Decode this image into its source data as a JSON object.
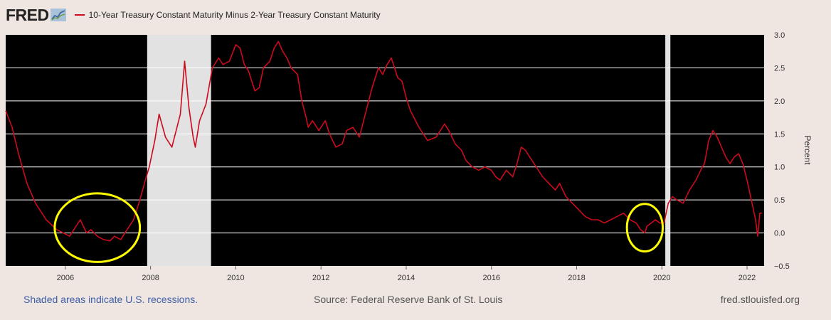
{
  "header": {
    "logo_text": "FRED",
    "legend_label": "10-Year Treasury Constant Maturity Minus 2-Year Treasury Constant Maturity"
  },
  "footer": {
    "recession_note": "Shaded areas indicate U.S. recessions.",
    "source": "Source: Federal Reserve Bank of St. Louis",
    "site": "fred.stlouisfed.org"
  },
  "colors": {
    "background": "#efe6e2",
    "plot_background": "#000000",
    "line": "#cc0a1e",
    "recession": "#e2e2e2",
    "highlight": "#ffff00"
  },
  "chart_data": {
    "type": "line",
    "title": "",
    "xlabel": "",
    "ylabel": "Percent",
    "xlim": [
      2004.6,
      2022.4
    ],
    "ylim": [
      -0.5,
      3.0
    ],
    "x_ticks": [
      "2006",
      "2008",
      "2010",
      "2012",
      "2014",
      "2016",
      "2018",
      "2020",
      "2022"
    ],
    "y_ticks": [
      "3.0",
      "2.5",
      "2.0",
      "1.5",
      "1.0",
      "0.5",
      "0.0",
      "−0.5"
    ],
    "grid": true,
    "recessions": [
      [
        2007.92,
        2009.42
      ],
      [
        2020.08,
        2020.2
      ]
    ],
    "highlights": [
      {
        "center": [
          2006.75,
          0.08
        ],
        "rx": 1.0,
        "ry": 0.52
      },
      {
        "center": [
          2019.6,
          0.08
        ],
        "rx": 0.42,
        "ry": 0.36
      }
    ],
    "series": [
      {
        "name": "10-Year Treasury Constant Maturity Minus 2-Year Treasury Constant Maturity",
        "x": [
          2004.6,
          2004.75,
          2004.9,
          2005.1,
          2005.3,
          2005.55,
          2005.8,
          2005.95,
          2006.1,
          2006.25,
          2006.35,
          2006.5,
          2006.6,
          2006.75,
          2006.9,
          2007.05,
          2007.15,
          2007.3,
          2007.45,
          2007.6,
          2007.75,
          2007.9,
          2007.97,
          2008.1,
          2008.2,
          2008.35,
          2008.5,
          2008.6,
          2008.7,
          2008.8,
          2008.9,
          2009.0,
          2009.05,
          2009.15,
          2009.3,
          2009.45,
          2009.6,
          2009.7,
          2009.85,
          2010.0,
          2010.1,
          2010.2,
          2010.3,
          2010.45,
          2010.55,
          2010.65,
          2010.8,
          2010.9,
          2011.0,
          2011.1,
          2011.2,
          2011.3,
          2011.45,
          2011.55,
          2011.65,
          2011.7,
          2011.8,
          2011.95,
          2012.1,
          2012.2,
          2012.35,
          2012.5,
          2012.6,
          2012.75,
          2012.9,
          2013.0,
          2013.2,
          2013.35,
          2013.45,
          2013.55,
          2013.65,
          2013.8,
          2013.9,
          2014.0,
          2014.1,
          2014.3,
          2014.5,
          2014.7,
          2014.9,
          2015.0,
          2015.15,
          2015.3,
          2015.4,
          2015.55,
          2015.7,
          2015.85,
          2016.0,
          2016.1,
          2016.2,
          2016.35,
          2016.5,
          2016.6,
          2016.7,
          2016.8,
          2016.9,
          2017.05,
          2017.2,
          2017.35,
          2017.5,
          2017.6,
          2017.75,
          2017.9,
          2018.05,
          2018.2,
          2018.35,
          2018.5,
          2018.65,
          2018.8,
          2018.95,
          2019.1,
          2019.25,
          2019.4,
          2019.5,
          2019.6,
          2019.65,
          2019.75,
          2019.85,
          2019.95,
          2020.05,
          2020.15,
          2020.25,
          2020.35,
          2020.5,
          2020.65,
          2020.8,
          2020.95,
          2021.0,
          2021.1,
          2021.2,
          2021.3,
          2021.4,
          2021.5,
          2021.6,
          2021.7,
          2021.8,
          2021.9,
          2022.0,
          2022.1,
          2022.2,
          2022.25,
          2022.3,
          2022.35
        ],
        "y": [
          1.85,
          1.6,
          1.2,
          0.75,
          0.45,
          0.2,
          0.05,
          0.0,
          -0.05,
          0.1,
          0.2,
          0.0,
          0.05,
          -0.05,
          -0.1,
          -0.12,
          -0.05,
          -0.1,
          0.05,
          0.2,
          0.5,
          0.85,
          1.0,
          1.4,
          1.8,
          1.45,
          1.3,
          1.55,
          1.8,
          2.6,
          1.9,
          1.45,
          1.3,
          1.7,
          1.95,
          2.5,
          2.65,
          2.55,
          2.6,
          2.85,
          2.8,
          2.55,
          2.45,
          2.15,
          2.2,
          2.5,
          2.6,
          2.8,
          2.9,
          2.75,
          2.65,
          2.5,
          2.4,
          2.0,
          1.75,
          1.6,
          1.7,
          1.55,
          1.7,
          1.5,
          1.3,
          1.35,
          1.55,
          1.6,
          1.45,
          1.7,
          2.2,
          2.5,
          2.4,
          2.55,
          2.65,
          2.35,
          2.3,
          2.05,
          1.85,
          1.6,
          1.4,
          1.45,
          1.65,
          1.55,
          1.35,
          1.25,
          1.1,
          1.0,
          0.95,
          1.0,
          0.95,
          0.85,
          0.8,
          0.95,
          0.85,
          1.05,
          1.3,
          1.25,
          1.15,
          1.0,
          0.85,
          0.75,
          0.65,
          0.75,
          0.55,
          0.45,
          0.35,
          0.25,
          0.2,
          0.2,
          0.15,
          0.2,
          0.25,
          0.3,
          0.2,
          0.15,
          0.05,
          0.0,
          0.1,
          0.15,
          0.2,
          0.15,
          0.15,
          0.45,
          0.55,
          0.5,
          0.45,
          0.65,
          0.8,
          1.0,
          1.05,
          1.4,
          1.55,
          1.45,
          1.3,
          1.15,
          1.05,
          1.15,
          1.2,
          1.05,
          0.8,
          0.5,
          0.2,
          -0.05,
          0.3,
          0.3
        ]
      }
    ]
  }
}
